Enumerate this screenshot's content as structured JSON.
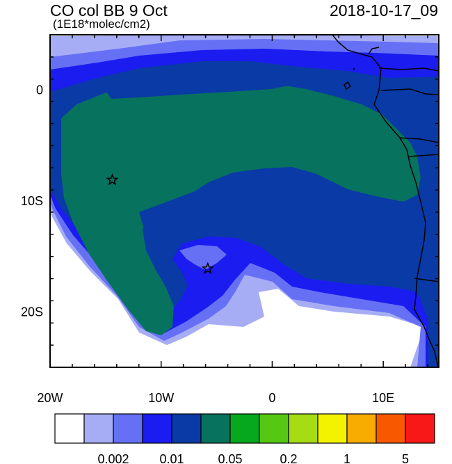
{
  "title": "CO col BB 9 Oct",
  "units": "(1E18*molec/cm2)",
  "timestamp": "2018-10-17_09",
  "x_ticks": [
    {
      "value": -20,
      "label": "20W"
    },
    {
      "value": -10,
      "label": "10W"
    },
    {
      "value": 0,
      "label": "0"
    },
    {
      "value": 10,
      "label": "10E"
    }
  ],
  "y_ticks": [
    {
      "value": 0,
      "label": "0"
    },
    {
      "value": -10,
      "label": "10S"
    },
    {
      "value": -20,
      "label": "20S"
    }
  ],
  "map_extent": {
    "lon": [
      -20,
      15
    ],
    "lat": [
      -25,
      5
    ]
  },
  "colorbar": {
    "colors": [
      "#ffffff",
      "#a6adf5",
      "#6670f5",
      "#1a1cf0",
      "#0a3aa6",
      "#07725e",
      "#06a81e",
      "#56c814",
      "#a6dc14",
      "#f3f300",
      "#f8ab00",
      "#f85800",
      "#f81818"
    ],
    "labels": [
      {
        "boundary": 2,
        "text": "0.002"
      },
      {
        "boundary": 4,
        "text": "0.01"
      },
      {
        "boundary": 6,
        "text": "0.05"
      },
      {
        "boundary": 8,
        "text": "0.2"
      },
      {
        "boundary": 10,
        "text": "1"
      },
      {
        "boundary": 12,
        "text": "5"
      }
    ]
  },
  "markers": [
    {
      "name": "star-marker-west",
      "lon": -14.4,
      "lat": -8.1
    },
    {
      "name": "star-marker-south",
      "lon": -5.8,
      "lat": -16.1
    }
  ],
  "legend_swatch_names": [
    "below-lowest",
    "level-1",
    "level-2",
    "level-3",
    "level-4",
    "level-5",
    "level-6",
    "level-7",
    "level-8",
    "level-9",
    "level-10",
    "level-11",
    "above-highest"
  ]
}
